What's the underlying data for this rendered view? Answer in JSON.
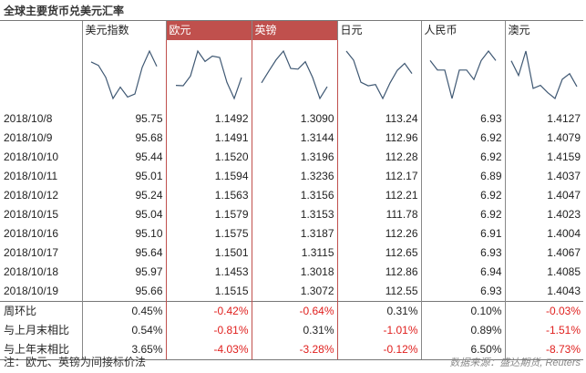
{
  "title": "全球主要货币兑美元汇率",
  "note": "注：欧元、英镑为间接标价法",
  "source": "数据来源：盛达期货, Reuters",
  "colors": {
    "highlight": "#c0504d",
    "negative": "#e0201e",
    "line": "#3f5873"
  },
  "chart_data": {
    "type": "table",
    "columns": [
      "美元指数",
      "欧元",
      "英镑",
      "日元",
      "人民币",
      "澳元"
    ],
    "dates": [
      "2018/10/8",
      "2018/10/9",
      "2018/10/10",
      "2018/10/11",
      "2018/10/12",
      "2018/10/15",
      "2018/10/16",
      "2018/10/17",
      "2018/10/18",
      "2018/10/19"
    ],
    "rows": [
      [
        "95.75",
        "1.1492",
        "1.3090",
        "113.24",
        "6.93",
        "1.4127"
      ],
      [
        "95.68",
        "1.1491",
        "1.3144",
        "112.96",
        "6.92",
        "1.4079"
      ],
      [
        "95.44",
        "1.1520",
        "1.3196",
        "112.28",
        "6.92",
        "1.4159"
      ],
      [
        "95.01",
        "1.1594",
        "1.3236",
        "112.17",
        "6.89",
        "1.4037"
      ],
      [
        "95.24",
        "1.1563",
        "1.3156",
        "112.21",
        "6.92",
        "1.4047"
      ],
      [
        "95.04",
        "1.1579",
        "1.3153",
        "111.78",
        "6.92",
        "1.4023"
      ],
      [
        "95.10",
        "1.1575",
        "1.3187",
        "112.26",
        "6.91",
        "1.4004"
      ],
      [
        "95.64",
        "1.1501",
        "1.3115",
        "112.65",
        "6.93",
        "1.4067"
      ],
      [
        "95.97",
        "1.1453",
        "1.3018",
        "112.86",
        "6.94",
        "1.4085"
      ],
      [
        "95.66",
        "1.1515",
        "1.3072",
        "112.55",
        "6.93",
        "1.4043"
      ]
    ],
    "summary": [
      {
        "label": "周环比",
        "values": [
          "0.45%",
          "-0.42%",
          "-0.64%",
          "0.31%",
          "0.10%",
          "-0.03%"
        ]
      },
      {
        "label": "与上月末相比",
        "values": [
          "0.54%",
          "-0.81%",
          "0.31%",
          "-1.01%",
          "0.89%",
          "-1.51%"
        ]
      },
      {
        "label": "与上年末相比",
        "values": [
          "3.65%",
          "-4.03%",
          "-3.28%",
          "-0.12%",
          "6.50%",
          "-8.73%"
        ]
      }
    ],
    "sparklines": [
      [
        95.75,
        95.68,
        95.44,
        95.01,
        95.24,
        95.04,
        95.1,
        95.64,
        95.97,
        95.66
      ],
      [
        1.1492,
        1.1491,
        1.152,
        1.1594,
        1.1563,
        1.1579,
        1.1575,
        1.1501,
        1.1453,
        1.1515
      ],
      [
        1.309,
        1.3144,
        1.3196,
        1.3236,
        1.3156,
        1.3153,
        1.3187,
        1.3115,
        1.3018,
        1.3072
      ],
      [
        113.24,
        112.96,
        112.28,
        112.17,
        112.21,
        111.78,
        112.26,
        112.65,
        112.86,
        112.55
      ],
      [
        6.93,
        6.92,
        6.92,
        6.89,
        6.92,
        6.92,
        6.91,
        6.93,
        6.94,
        6.93
      ],
      [
        1.4127,
        1.4079,
        1.4159,
        1.4037,
        1.4047,
        1.4023,
        1.4004,
        1.4067,
        1.4085,
        1.4043
      ]
    ],
    "highlighted_columns": [
      1,
      2
    ]
  }
}
